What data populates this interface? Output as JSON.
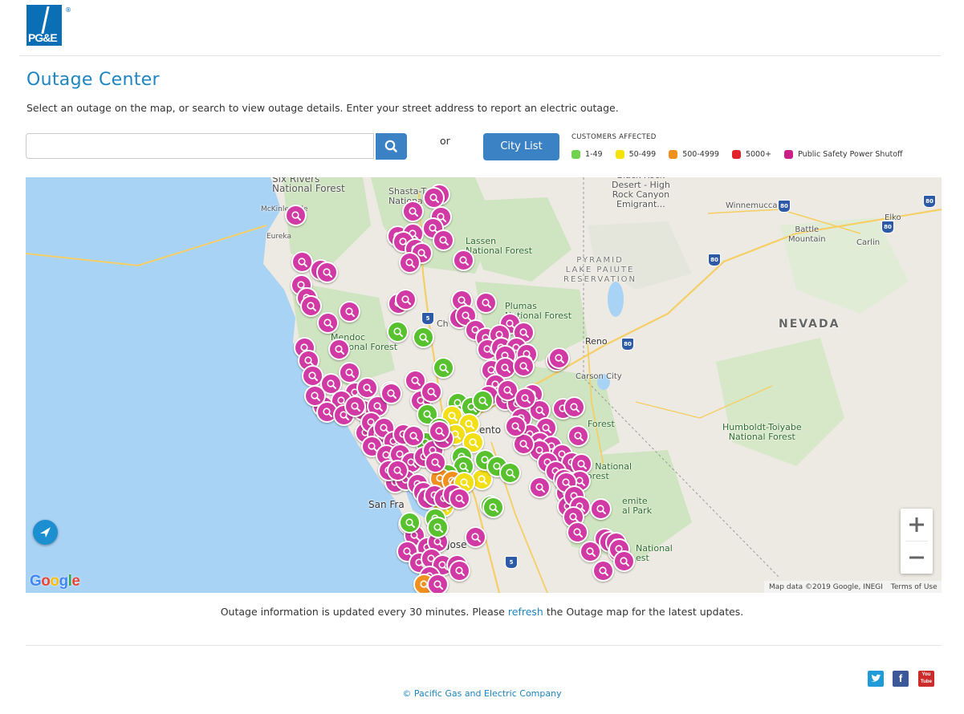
{
  "brand": {
    "logo_text": "PG&E",
    "registered_mark": "®"
  },
  "page": {
    "title": "Outage Center",
    "subtitle": "Select an outage on the map, or search to view outage details. Enter your street address to report an electric outage."
  },
  "search": {
    "value": "",
    "placeholder": "",
    "button_icon": "search-icon"
  },
  "or_label": "or",
  "city_list_button": "City List",
  "legend": {
    "title": "CUSTOMERS AFFECTED",
    "items": [
      {
        "label": "1-49",
        "color": "#6fd34f"
      },
      {
        "label": "50-499",
        "color": "#f6e20c"
      },
      {
        "label": "500-4999",
        "color": "#f2901f"
      },
      {
        "label": "5000+",
        "color": "#e3232b"
      },
      {
        "label": "Public Safety Power Shutoff",
        "color": "#c91f87"
      }
    ]
  },
  "map": {
    "colors": {
      "water": "#a9d3f5",
      "land": "#eceae2",
      "forest": "#cfe4c0",
      "roads": "#f5cf66",
      "pin_purple": "#d13aa5",
      "pin_green": "#57c12e",
      "pin_yellow": "#f3df16",
      "pin_orange": "#f2901f"
    },
    "labels": {
      "six_rivers": "Six Rivers\nNational Forest",
      "mckinleyville": "McKinleyville",
      "eureka": "Eureka",
      "shasta": "Shasta-T\nNationa",
      "lassen": "Lassen\nNational Forest",
      "black_rock": "Black Rock\nDesert - High\nRock Canyon\nEmigrant...",
      "winnemucca": "Winnemucca",
      "battle_mountain": "Battle\nMountain",
      "elko": "Elko",
      "carlin": "Carlin",
      "pyramid": "PYRAMID\nLAKE PAIUTE\nRESERVATION",
      "plumas": "Plumas\nNational Forest",
      "nevada": "NEVADA",
      "reno": "Reno",
      "carson_city": "Carson City",
      "mendocino": "Mendoc\nNational Forest",
      "chico": "Ch",
      "sacramento": "ento",
      "eldorado": "Forest",
      "humboldt": "Humboldt-Toiyabe\nNational Forest",
      "stanislaus": "us National\nForest",
      "san_francisco": "San Fra",
      "yosemite": "emite\nal Park",
      "sierra": "National\nest",
      "san_jose": "Jose"
    },
    "highway_shields": [
      "5",
      "80",
      "80",
      "80",
      "80",
      "80",
      "5"
    ],
    "zoom_in_icon": "plus-icon",
    "zoom_out_icon": "minus-icon",
    "locate_icon": "navigation-arrow-icon",
    "google_logo": "Google",
    "attribution": "Map data ©2019 Google, INEGI",
    "terms": "Terms of Use"
  },
  "update_note": {
    "before": "Outage information is updated every 30 minutes. Please ",
    "link": "refresh",
    "after": " the Outage map for the latest updates."
  },
  "social": [
    {
      "name": "twitter",
      "glyph": "t",
      "color": "#1e9bd8"
    },
    {
      "name": "facebook",
      "glyph": "f",
      "color": "#3b5998"
    },
    {
      "name": "youtube",
      "glyph": "You Tube",
      "color": "#cc2b2b"
    }
  ],
  "footer": "© Pacific Gas and Electric Company"
}
